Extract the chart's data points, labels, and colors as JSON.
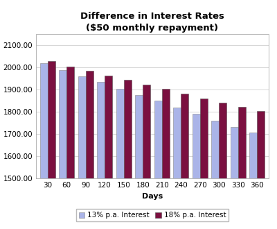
{
  "title": "Difference in Interest Rates",
  "subtitle": "($50 monthly repayment)",
  "xlabel": "Days",
  "days": [
    30,
    60,
    90,
    120,
    150,
    180,
    210,
    240,
    270,
    300,
    330,
    360
  ],
  "series_13": [
    2020,
    1988,
    1962,
    1935,
    1905,
    1875,
    1850,
    1820,
    1793,
    1762,
    1732,
    1707
  ],
  "series_18": [
    2030,
    2005,
    1987,
    1965,
    1945,
    1923,
    1905,
    1882,
    1862,
    1843,
    1823,
    1805
  ],
  "color_13": "#aab4e8",
  "color_18": "#7b1040",
  "ylim_min": 1500,
  "ylim_max": 2150,
  "yticks": [
    1500,
    1600,
    1700,
    1800,
    1900,
    2000,
    2100
  ],
  "legend_13": "13% p.a. Interest",
  "legend_18": "18% p.a. Interest",
  "background_color": "#ffffff",
  "grid_color": "#d0d0d0",
  "title_fontsize": 9.5,
  "subtitle_fontsize": 8.5,
  "label_fontsize": 8,
  "tick_fontsize": 7.5,
  "legend_fontsize": 7.5
}
